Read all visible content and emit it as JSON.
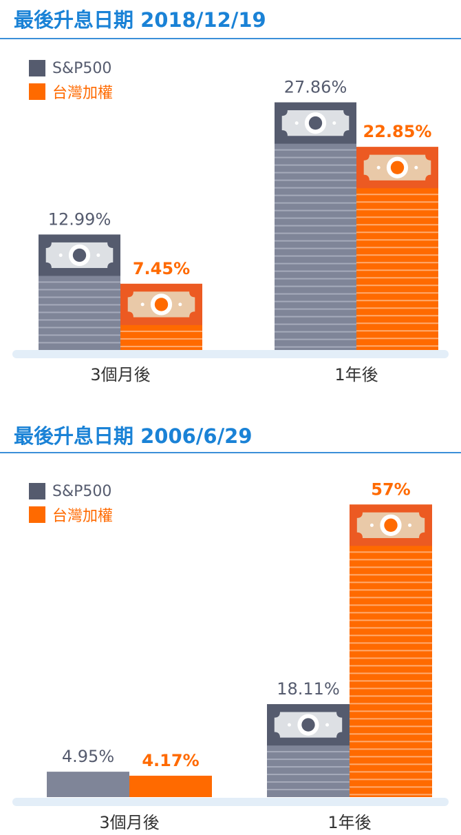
{
  "chart_data": [
    {
      "type": "bar",
      "title": "最後升息日期 2018/12/19",
      "categories": [
        "3個月後",
        "1年後"
      ],
      "series": [
        {
          "name": "S&P500",
          "values": [
            12.99,
            27.86
          ],
          "labels": [
            "12.99%",
            "27.86%"
          ],
          "color": "#7f8598"
        },
        {
          "name": "台灣加權",
          "values": [
            7.45,
            22.85
          ],
          "labels": [
            "7.45%",
            "22.85%"
          ],
          "color": "#ff6a00"
        }
      ],
      "ylim": [
        0,
        30
      ]
    },
    {
      "type": "bar",
      "title": "最後升息日期 2006/6/29",
      "categories": [
        "3個月後",
        "1年後"
      ],
      "series": [
        {
          "name": "S&P500",
          "values": [
            4.95,
            18.11
          ],
          "labels": [
            "4.95%",
            "18.11%"
          ],
          "color": "#7f8598"
        },
        {
          "name": "台灣加權",
          "values": [
            4.17,
            57
          ],
          "labels": [
            "4.17%",
            "57%"
          ],
          "color": "#ff6a00"
        }
      ],
      "ylim": [
        0,
        60
      ]
    }
  ],
  "colors": {
    "title": "#1a82d6",
    "sp_body": "#7f8598",
    "sp_head": "#555b6e",
    "tw_body": "#ff6a00",
    "tw_head": "#ec5a22",
    "sp_label": "#555b6e",
    "tw_label": "#ff6a00",
    "baseline": "#e3eef8"
  },
  "icons": {
    "bar_top": "banknote-icon"
  }
}
